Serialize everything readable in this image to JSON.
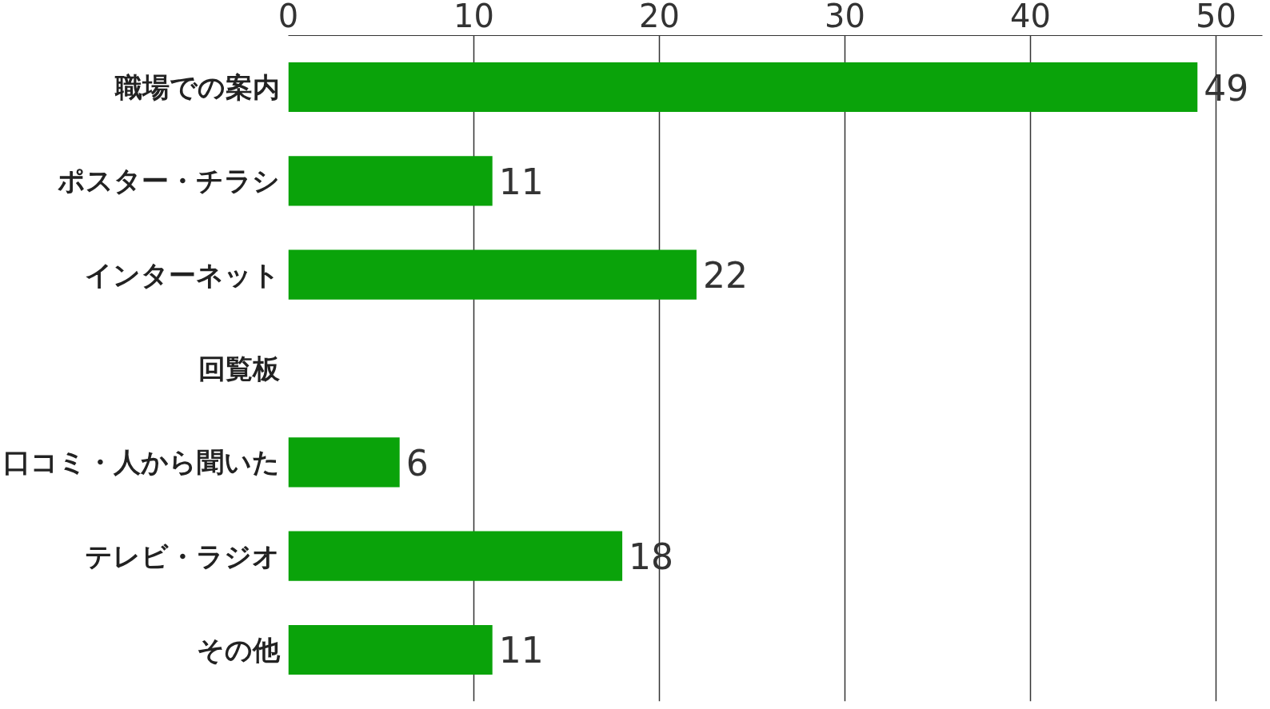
{
  "chart_data": {
    "type": "bar",
    "orientation": "horizontal",
    "categories": [
      "職場での案内",
      "ポスター・チラシ",
      "インターネット",
      "回覧板",
      "口コミ・人から聞いた",
      "テレビ・ラジオ",
      "その他"
    ],
    "values": [
      49,
      11,
      22,
      null,
      6,
      18,
      11
    ],
    "color": "#0aa30a",
    "data_labels": true,
    "xlim": [
      0,
      52.5
    ],
    "xticks": [
      0,
      10,
      20,
      30,
      40,
      50
    ],
    "grid": "x"
  }
}
